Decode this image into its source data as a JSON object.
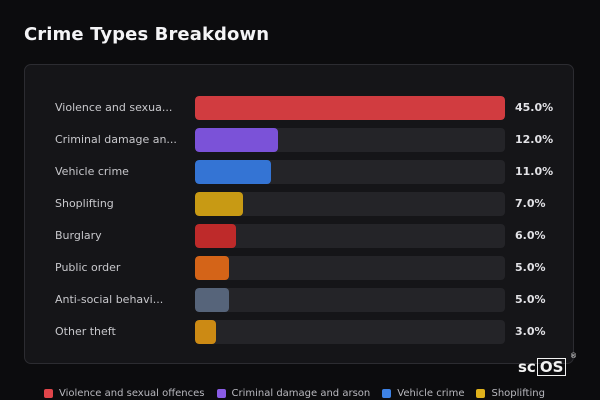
{
  "chart_data": {
    "type": "bar",
    "orientation": "horizontal",
    "title": "Crime Types Breakdown",
    "categories": [
      "Violence and sexua...",
      "Criminal damage an...",
      "Vehicle crime",
      "Shoplifting",
      "Burglary",
      "Public order",
      "Anti-social behavi...",
      "Other theft"
    ],
    "values": [
      45.0,
      12.0,
      11.0,
      7.0,
      6.0,
      5.0,
      5.0,
      3.0
    ],
    "value_labels": [
      "45.0%",
      "12.0%",
      "11.0%",
      "7.0%",
      "6.0%",
      "5.0%",
      "5.0%",
      "3.0%"
    ],
    "colors": [
      "#d13c40",
      "#7b52d8",
      "#3474d4",
      "#c89a14",
      "#be2a2a",
      "#d46418",
      "#56647a",
      "#cc8a14"
    ],
    "xlim": [
      0,
      45
    ],
    "grid": false,
    "legend": {
      "placement": "bottom",
      "entries": [
        {
          "label": "Violence and sexual offences",
          "color": "#e0454a"
        },
        {
          "label": "Criminal damage and arson",
          "color": "#8a5ce6"
        },
        {
          "label": "Vehicle crime",
          "color": "#3d82e6"
        },
        {
          "label": "Shoplifting",
          "color": "#e0b21c"
        }
      ]
    }
  },
  "logo": {
    "left": "sc",
    "right": "OS",
    "mark": "®"
  }
}
